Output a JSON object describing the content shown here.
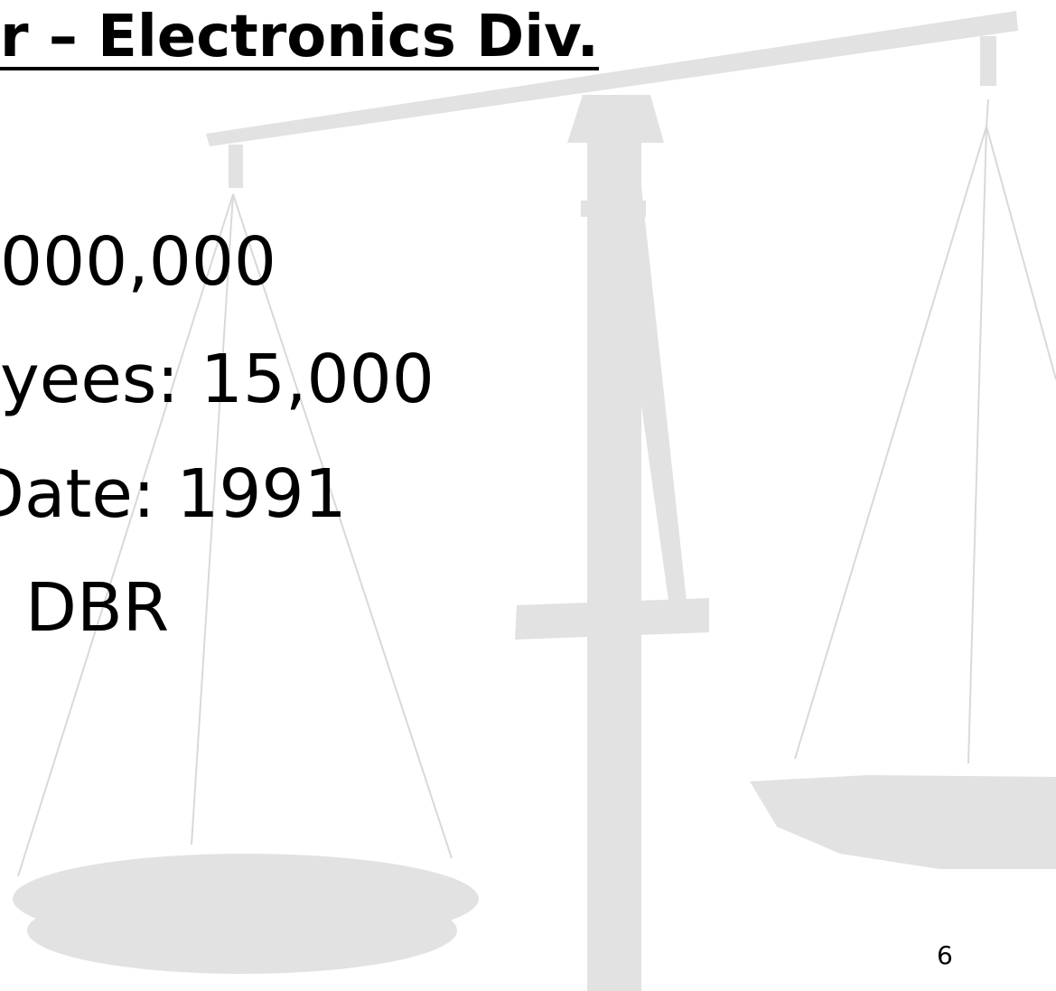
{
  "slide": {
    "title": "r – Electronics Div.",
    "bullets": [
      "000,000",
      "yees: 15,000",
      "Date: 1991",
      "DBR"
    ],
    "page_number": "6"
  }
}
